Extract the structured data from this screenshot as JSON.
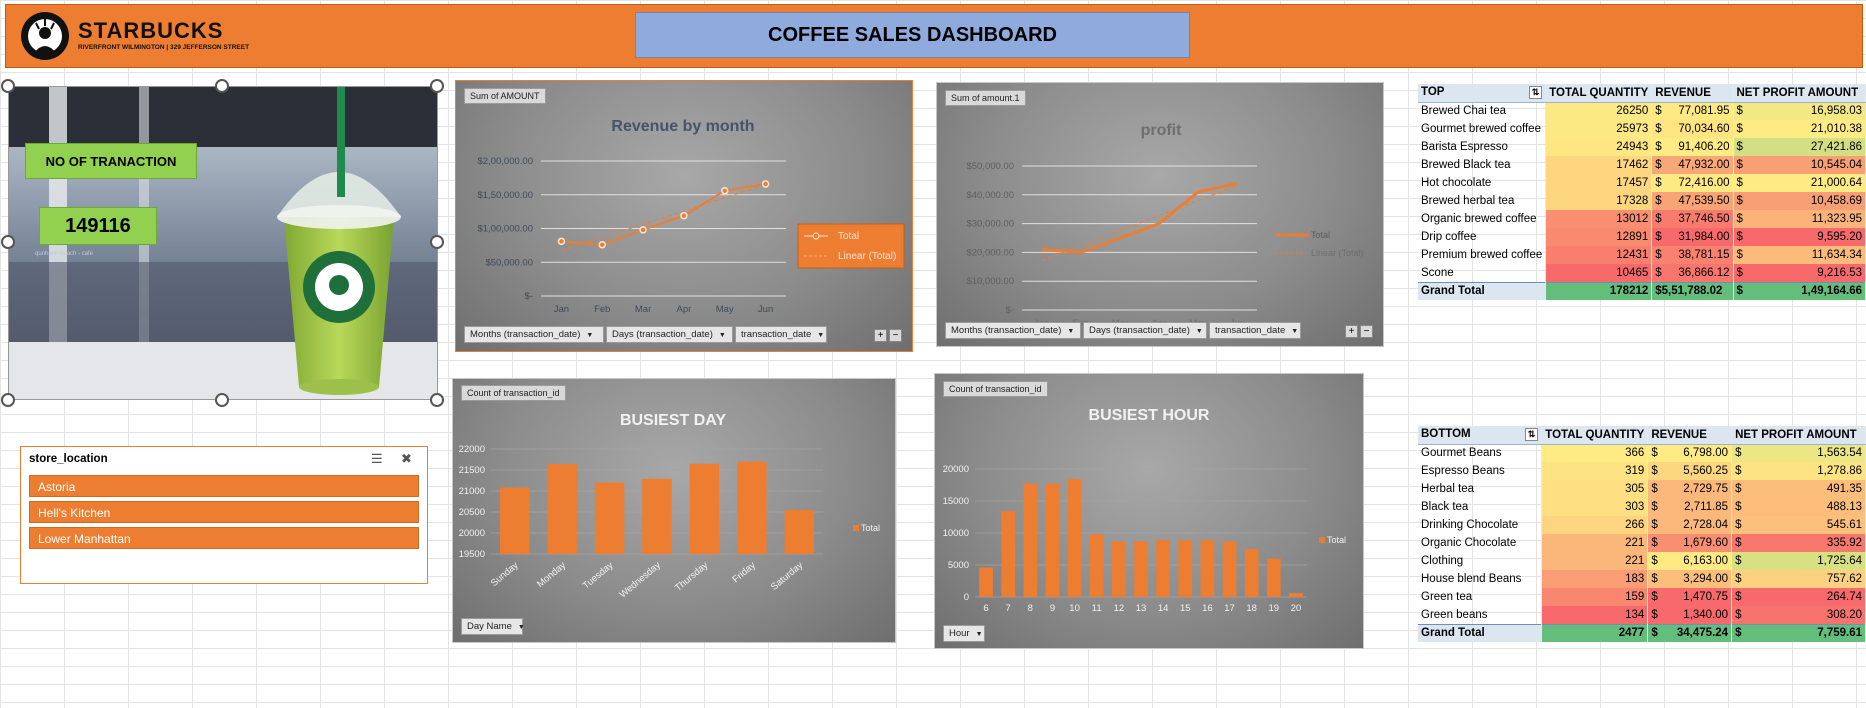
{
  "header": {
    "brand": "STARBUCKS",
    "brand_sub": "RIVERFRONT WILMINGTON | 329 JEFFERSON STREET",
    "title": "COFFEE SALES DASHBOARD"
  },
  "kpi": {
    "label": "NO OF TRANACTION",
    "value": "149116",
    "watermark": "qunhanh beach - cafe"
  },
  "slicer": {
    "title": "store_location",
    "items": [
      "Astoria",
      "Hell's Kitchen",
      "Lower Manhattan"
    ]
  },
  "charts": [
    {
      "type": "line",
      "chip": "Sum of AMOUNT",
      "title": "Revenue by month",
      "categories": [
        "Jan",
        "Feb",
        "Mar",
        "Apr",
        "May",
        "Jun"
      ],
      "series": [
        {
          "name": "Total",
          "values": [
            81000,
            76000,
            98000,
            119000,
            156000,
            166000
          ]
        }
      ],
      "trend_name": "Linear (Total)",
      "y_ticks": [
        "$-",
        "$50,000.00",
        "$1,00,000.00",
        "$1,50,000.00",
        "$2,00,000.00"
      ],
      "ylim": [
        0,
        200000
      ],
      "filters": [
        "Months (transaction_date)",
        "Days (transaction_date)",
        "transaction_date"
      ]
    },
    {
      "type": "line",
      "chip": "Sum of amount.1",
      "title": "profit",
      "categories": [
        "Jan",
        "Feb",
        "Mar",
        "Apr",
        "May",
        "Jun"
      ],
      "series": [
        {
          "name": "Total",
          "values": [
            21000,
            20000,
            25000,
            30000,
            41000,
            44000
          ]
        }
      ],
      "trend_name": "Linear (Total)",
      "y_ticks": [
        "$-",
        "$10,000.00",
        "$20,000.00",
        "$30,000.00",
        "$40,000.00",
        "$50,000.00"
      ],
      "ylim": [
        0,
        50000
      ],
      "filters": [
        "Months (transaction_date)",
        "Days (transaction_date)",
        "transaction_date"
      ]
    },
    {
      "type": "bar",
      "chip": "Count of transaction_id",
      "title": "BUSIEST DAY",
      "categories": [
        "Sunday",
        "Monday",
        "Tuesday",
        "Wednesday",
        "Thursday",
        "Friday",
        "Saturday"
      ],
      "series": [
        {
          "name": "Total",
          "values": [
            21080,
            21640,
            21200,
            21290,
            21650,
            21700,
            20550
          ]
        }
      ],
      "y_ticks": [
        "19500",
        "20000",
        "20500",
        "21000",
        "21500",
        "22000"
      ],
      "ylim": [
        19500,
        22000
      ],
      "filters": [
        "Day Name"
      ]
    },
    {
      "type": "bar",
      "chip": "Count of transaction_id",
      "title": "BUSIEST HOUR",
      "categories": [
        "6",
        "7",
        "8",
        "9",
        "10",
        "11",
        "12",
        "13",
        "14",
        "15",
        "16",
        "17",
        "18",
        "19",
        "20"
      ],
      "series": [
        {
          "name": "Total",
          "values": [
            4600,
            13400,
            17700,
            17700,
            18400,
            9800,
            8700,
            8700,
            8900,
            8900,
            8900,
            8700,
            7500,
            6000,
            600
          ]
        }
      ],
      "y_ticks": [
        "0",
        "5000",
        "10000",
        "15000",
        "20000"
      ],
      "ylim": [
        0,
        20000
      ],
      "filters": [
        "Hour"
      ]
    }
  ],
  "top_table": {
    "headers": [
      "TOP",
      "TOTAL QUANTITY",
      "REVENUE",
      "NET PROFIT AMOUNT"
    ],
    "rows": [
      {
        "name": "Brewed Chai tea",
        "qty": "26250",
        "rev": "77,081.95",
        "profit": "16,958.03",
        "c": [
          "#fbe984",
          "#fee982",
          "#f3e884"
        ]
      },
      {
        "name": "Gourmet brewed coffee",
        "qty": "25973",
        "rev": "70,034.60",
        "profit": "21,010.38",
        "c": [
          "#fde983",
          "#fee582",
          "#ffeb84"
        ]
      },
      {
        "name": "Barista Espresso",
        "qty": "24943",
        "rev": "91,406.20",
        "profit": "27,421.86",
        "c": [
          "#fee683",
          "#ffeb84",
          "#d2df82"
        ]
      },
      {
        "name": "Brewed Black tea",
        "qty": "17462",
        "rev": "47,932.00",
        "profit": "10,545.04",
        "c": [
          "#fdd67f",
          "#f8a776",
          "#f8a074"
        ]
      },
      {
        "name": "Hot chocolate",
        "qty": "17457",
        "rev": "72,416.00",
        "profit": "21,000.64",
        "c": [
          "#fdd67f",
          "#ffe983",
          "#ffeb84"
        ]
      },
      {
        "name": "Brewed herbal tea",
        "qty": "17328",
        "rev": "47,539.50",
        "profit": "10,458.69",
        "c": [
          "#fdd57f",
          "#f8a475",
          "#f89e74"
        ]
      },
      {
        "name": "Organic brewed coffee",
        "qty": "13012",
        "rev": "37,746.50",
        "profit": "11,323.95",
        "c": [
          "#f98e71",
          "#f87b6e",
          "#fbb37a"
        ]
      },
      {
        "name": "Drip coffee",
        "qty": "12891",
        "rev": "31,984.00",
        "profit": "9,595.20",
        "c": [
          "#f98a70",
          "#f8696b",
          "#f8696b"
        ]
      },
      {
        "name": "Premium brewed coffee",
        "qty": "12431",
        "rev": "38,781.15",
        "profit": "11,634.34",
        "c": [
          "#f87f6e",
          "#f8816f",
          "#fcbb7b"
        ]
      },
      {
        "name": "Scone",
        "qty": "10465",
        "rev": "36,866.12",
        "profit": "9,216.53",
        "c": [
          "#f8696b",
          "#f8766d",
          "#f8696b"
        ]
      }
    ],
    "total": {
      "label": "Grand Total",
      "qty": "178212",
      "rev": "$5,51,788.02",
      "profit": "1,49,164.66"
    }
  },
  "bottom_table": {
    "headers": [
      "BOTTOM",
      "TOTAL QUANTITY",
      "REVENUE",
      "NET PROFIT AMOUNT"
    ],
    "rows": [
      {
        "name": "Gourmet Beans",
        "qty": "366",
        "rev": "6,798.00",
        "profit": "1,563.54",
        "c": [
          "#ffeb84",
          "#ffeb84",
          "#ece684"
        ]
      },
      {
        "name": "Espresso Beans",
        "qty": "319",
        "rev": "5,560.25",
        "profit": "1,278.86",
        "c": [
          "#fee382",
          "#fdd680",
          "#fee383"
        ]
      },
      {
        "name": "Herbal tea",
        "qty": "305",
        "rev": "2,729.75",
        "profit": "491.35",
        "c": [
          "#fee082",
          "#fbb87a",
          "#fcbd7b"
        ]
      },
      {
        "name": "Black tea",
        "qty": "303",
        "rev": "2,711.85",
        "profit": "488.13",
        "c": [
          "#fee082",
          "#fbb87a",
          "#fcbd7b"
        ]
      },
      {
        "name": "Drinking Chocolate",
        "qty": "266",
        "rev": "2,728.04",
        "profit": "545.61",
        "c": [
          "#fdd47f",
          "#fbb87a",
          "#fcc07c"
        ]
      },
      {
        "name": "Organic Chocolate",
        "qty": "221",
        "rev": "1,679.60",
        "profit": "335.92",
        "c": [
          "#fbb77a",
          "#f98f72",
          "#f8786d"
        ]
      },
      {
        "name": "Clothing",
        "qty": "221",
        "rev": "6,163.00",
        "profit": "1,725.64",
        "c": [
          "#fbb77a",
          "#ffe983",
          "#d7e182"
        ]
      },
      {
        "name": "House blend Beans",
        "qty": "183",
        "rev": "3,294.00",
        "profit": "757.62",
        "c": [
          "#fa9c74",
          "#fbbf7b",
          "#fdd17f"
        ]
      },
      {
        "name": "Green tea",
        "qty": "159",
        "rev": "1,470.75",
        "profit": "264.74",
        "c": [
          "#f9866f",
          "#f8696b",
          "#f8696b"
        ]
      },
      {
        "name": "Green beans",
        "qty": "134",
        "rev": "1,340.00",
        "profit": "308.20",
        "c": [
          "#f8696b",
          "#f8696b",
          "#f8736d"
        ]
      }
    ],
    "total": {
      "label": "Grand Total",
      "qty": "2477",
      "rev": "34,475.24",
      "profit": "7,759.61"
    }
  },
  "colors": {
    "accent": "#ed7d31",
    "title_box": "#8faadc",
    "kpi_green": "#92d050",
    "total_green": "#63be7b",
    "header_blue": "#dce6f1"
  }
}
